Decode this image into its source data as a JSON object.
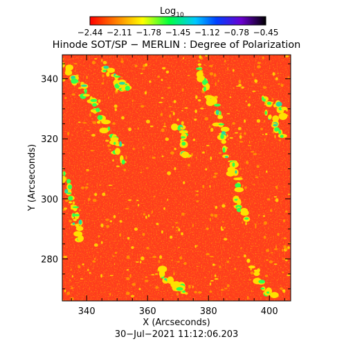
{
  "colorbar": {
    "label_main": "Log",
    "label_sub": "10",
    "tick_labels": [
      "−2.44",
      "−2.11",
      "−1.78",
      "−1.45",
      "−1.12",
      "−0.78",
      "−0.45"
    ],
    "range": [
      -2.44,
      -0.45
    ],
    "palette": [
      "#ff0000",
      "#ff8000",
      "#ffff00",
      "#00ff40",
      "#00c8ff",
      "#0040ff",
      "#6a00d0",
      "#000000"
    ]
  },
  "title": "Hinode SOT/SP − MERLIN : Degree of Polarization",
  "x_axis": {
    "label": "X (Arcseconds)",
    "range": [
      332,
      407
    ],
    "ticks": [
      340,
      360,
      380,
      400
    ],
    "tick_labels": [
      "340",
      "360",
      "380",
      "400"
    ]
  },
  "y_axis": {
    "label": "Y (Arcseconds)",
    "range": [
      266,
      348
    ],
    "ticks": [
      280,
      300,
      320,
      340
    ],
    "tick_labels": [
      "280",
      "300",
      "320",
      "340"
    ]
  },
  "timestamp": "30−Jul−2021 11:12:06.203",
  "map_colors": {
    "background": "#ff3b1a",
    "mid": "#ff6a10",
    "orange": "#ff9a00",
    "yellow": "#ffe000",
    "green": "#30ff50",
    "cyan": "#28d8a0"
  }
}
